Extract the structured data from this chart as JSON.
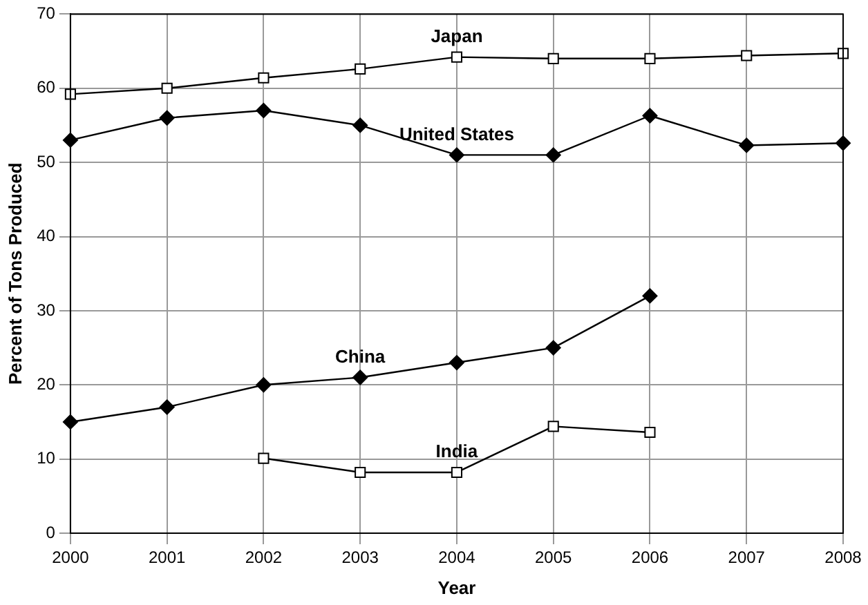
{
  "chart_data": {
    "type": "line",
    "xlabel": "Year",
    "ylabel": "Percent of Tons Produced",
    "categories": [
      "2000",
      "2001",
      "2002",
      "2003",
      "2004",
      "2005",
      "2006",
      "2007",
      "2008"
    ],
    "ylim": [
      0,
      70
    ],
    "yticks": [
      0,
      10,
      20,
      30,
      40,
      50,
      60,
      70
    ],
    "grid": true,
    "legend": false,
    "line_style": "solid",
    "series": [
      {
        "name": "Japan",
        "color": "#000000",
        "marker": "square",
        "values": [
          59.2,
          60,
          61.4,
          62.6,
          64.2,
          64,
          64,
          64.4,
          64.7
        ]
      },
      {
        "name": "United States",
        "color": "#000000",
        "marker": "diamond",
        "values": [
          53,
          56,
          57,
          55,
          51,
          51,
          56.3,
          52.3,
          52.6
        ]
      },
      {
        "name": "China",
        "color": "#000000",
        "marker": "diamond",
        "values": [
          15,
          17,
          20,
          21,
          23,
          25,
          32,
          null,
          null
        ]
      },
      {
        "name": "India",
        "color": "#000000",
        "marker": "square",
        "values": [
          null,
          null,
          10.1,
          8.2,
          8.2,
          14.4,
          13.6,
          null,
          null
        ]
      }
    ]
  }
}
